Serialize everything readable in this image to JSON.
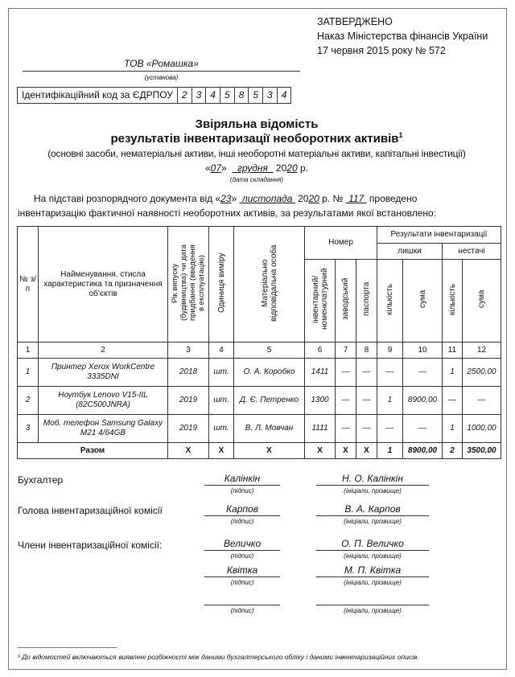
{
  "approval": {
    "line1": "ЗАТВЕРДЖЕНО",
    "line2": "Наказ Міністерства фінансів України",
    "line3": "17 червня 2015 року № 572"
  },
  "organization": {
    "name": "ТОВ «Ромашка»",
    "caption": "(установа)"
  },
  "edrpou": {
    "label": "Ідентифікаційний код за ЄДРПОУ",
    "digits": [
      "2",
      "3",
      "4",
      "5",
      "8",
      "5",
      "3",
      "4"
    ]
  },
  "title": {
    "line1": "Звіряльна відомість",
    "line2": "результатів інвентаризації необоротних активів",
    "footnote_mark": "1",
    "subtitle": "(основні засоби, нематеріальні активи, інші необоротні матеріальні активи, капітальні інвестиції)"
  },
  "date": {
    "open": "«",
    "day": "07",
    "mid": "»",
    "month": "грудня",
    "year_prefix": "20",
    "year_suffix": "20",
    "suffix": "р.",
    "caption": "(дата складання)"
  },
  "basis": {
    "t1": "На підставі розпорядчого документа від «",
    "day": "23",
    "t2": "»",
    "month": "листопада",
    "t3": "20",
    "year": "20",
    "t4": "р. №",
    "number": "117",
    "t5": "проведено",
    "line2": "інвентаризацію фактичної наявності необоротних активів, за результатами якої встановлено:"
  },
  "table": {
    "h": {
      "num": "№ з/п",
      "name": "Найменування, стисла характеристика та призначення об’єктів",
      "year": "Рік випуску (будівництва) чи дата придбання (введення в експлуатацію)",
      "unit": "Одиниця виміру",
      "person": "Матеріально відповідальна особа",
      "number": "Номер",
      "inv": "інвентарний/ номенклатурний",
      "factory": "заводський",
      "passport": "паспорта",
      "results": "Результати інвентаризації",
      "surplus": "лишки",
      "shortage": "нестачі",
      "qty": "кількість",
      "sum": "сума"
    },
    "col_numbers": [
      "1",
      "2",
      "3",
      "4",
      "5",
      "6",
      "7",
      "8",
      "9",
      "10",
      "11",
      "12"
    ],
    "rows": [
      [
        "1",
        "Принтер Xerox WorkCentre 3335DNI",
        "2018",
        "шт.",
        "О. А. Коробко",
        "1411",
        "—",
        "—",
        "—",
        "—",
        "1",
        "2500,00"
      ],
      [
        "2",
        "Ноутбук Lenovo V15-IIL (82C500JNRA)",
        "2019",
        "шт.",
        "Д. Є. Петренко",
        "1300",
        "—",
        "—",
        "1",
        "8900,00",
        "—",
        "—"
      ],
      [
        "3",
        "Моб. телефон Samsung Galaxy M21 4/64GB",
        "2019",
        "шт.",
        "В. Л. Мовчан",
        "1111",
        "—",
        "—",
        "—",
        "—",
        "1",
        "1000,00"
      ]
    ],
    "total": [
      "Разом",
      "Х",
      "Х",
      "Х",
      "Х",
      "Х",
      "Х",
      "1",
      "8900,00",
      "2",
      "3500,00"
    ]
  },
  "signatures": {
    "sig_caption": "(підпис)",
    "name_caption": "(ініціали, прізвище)",
    "accountant": {
      "label": "Бухгалтер",
      "sign": "Калінкін",
      "name": "Н. О. Калінкін"
    },
    "head": {
      "label": "Голова інвентаризаційної комісії",
      "sign": "Карпов",
      "name": "В. А. Карпов"
    },
    "members_label": "Члени інвентаризаційної комісії:",
    "members": [
      {
        "sign": "Величко",
        "name": "О. П. Величко"
      },
      {
        "sign": "Квітка",
        "name": "М. П. Квітка"
      },
      {
        "sign": "",
        "name": ""
      }
    ]
  },
  "footnote": "¹ До відомостей включаються виявлені розбіжності між даними бухгалтерського обліку і даними інвентаризаційних описів."
}
